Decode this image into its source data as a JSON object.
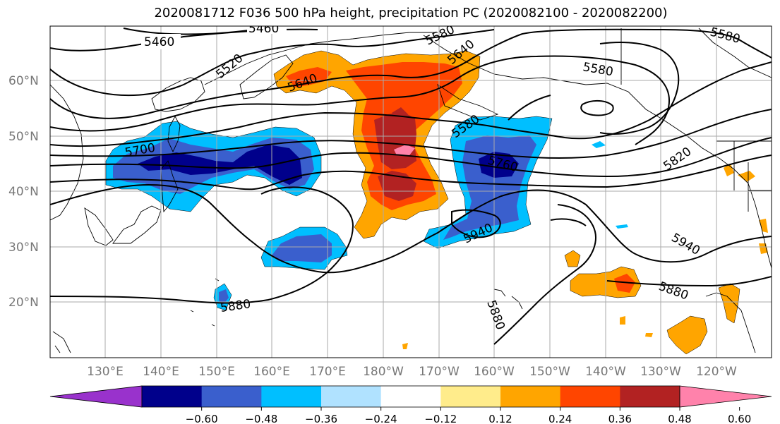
{
  "title": "2020081712 F036 500 hPa height, precipitation PC (2020082100 - 2020082200)",
  "lat_labels": [
    "60°N",
    "50°N",
    "40°N",
    "30°N",
    "20°N"
  ],
  "lon_labels": [
    "130°E",
    "140°E",
    "150°E",
    "160°E",
    "170°E",
    "180°W",
    "170°W",
    "160°W",
    "150°W",
    "140°W",
    "130°W",
    "120°W"
  ],
  "contour_labels": [
    "5460",
    "5460",
    "5520",
    "5580",
    "5580",
    "5580",
    "5640",
    "5640",
    "5580",
    "5700",
    "5760",
    "5820",
    "5940",
    "5940",
    "5880",
    "5880",
    "5880"
  ],
  "colorbar": {
    "ticks": [
      "−0.60",
      "−0.48",
      "−0.36",
      "−0.24",
      "−0.12",
      "0.12",
      "0.24",
      "0.36",
      "0.48",
      "0.60"
    ],
    "colors": [
      "#9932cc",
      "#00008b",
      "#3a5fcd",
      "#00bfff",
      "#b0e2ff",
      "#ffffff",
      "#ffec8b",
      "#ffa500",
      "#ff4500",
      "#b22222",
      "#ff82ab"
    ]
  },
  "colors": {
    "neg_strong": "#00008b",
    "neg_mid": "#3a5fcd",
    "neg_light": "#00bfff",
    "pos_light": "#ffa500",
    "pos_mid": "#ff4500",
    "pos_strong": "#b22222",
    "pos_max": "#ff82ab",
    "grid": "#aaaaaa"
  }
}
